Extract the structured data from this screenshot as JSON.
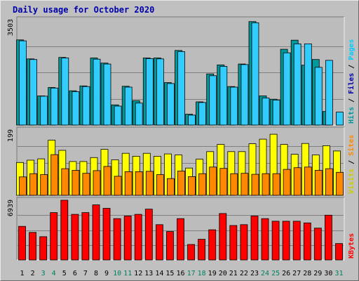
{
  "chart_data": {
    "title": "Daily usage for October 2020",
    "type": "bar",
    "days": [
      "1",
      "2",
      "3",
      "4",
      "5",
      "6",
      "7",
      "8",
      "9",
      "10",
      "11",
      "12",
      "13",
      "14",
      "15",
      "16",
      "17",
      "18",
      "19",
      "20",
      "21",
      "22",
      "23",
      "24",
      "25",
      "26",
      "27",
      "28",
      "29",
      "30",
      "31"
    ],
    "weekend_days": [
      "3",
      "4",
      "10",
      "11",
      "17",
      "18",
      "24",
      "25",
      "31"
    ],
    "colors": {
      "title": "#0000aa",
      "day_label": "#000000",
      "weekend_label": "#008060",
      "hits": "#009999",
      "files": "#33ccff",
      "pages": "#00ccff",
      "visits": "#ffff00",
      "sites": "#ff8800",
      "kbytes": "#ff0000",
      "background": "#c0c0c0",
      "plot_bg": "#bcbcbc",
      "grid": "#808080"
    },
    "panels": [
      {
        "id": "hits-files-pages",
        "ymax_label": "3503",
        "ylim": [
          0,
          3503
        ],
        "side_labels": [
          {
            "text": "Hits",
            "color": "#009999"
          },
          {
            "text": "Files",
            "color": "#0000aa"
          },
          {
            "text": "Pages",
            "color": "#00ccff"
          }
        ],
        "separator": " / ",
        "series": [
          {
            "name": "Hits",
            "color": "#009999",
            "values": [
              2830,
              2200,
              970,
              1250,
              2250,
              1140,
              1300,
              2230,
              2060,
              670,
              1290,
              810,
              2230,
              2230,
              1410,
              2480,
              360,
              770,
              1700,
              2000,
              1280,
              2030,
              3440,
              970,
              860,
              2520,
              2820,
              1990,
              2180,
              450,
              0
            ]
          },
          {
            "name": "Files",
            "color": "#33ccff",
            "values": [
              2800,
              2180,
              960,
              1230,
              2230,
              1110,
              1280,
              2190,
              2030,
              630,
              1260,
              730,
              2210,
              2200,
              1380,
              2440,
              330,
              750,
              1640,
              1950,
              1260,
              2010,
              3400,
              900,
              830,
              2400,
              2700,
              2700,
              1920,
              2150,
              430
            ]
          }
        ]
      },
      {
        "id": "visits-sites",
        "ymax_label": "199",
        "ylim": [
          0,
          199
        ],
        "side_labels": [
          {
            "text": "Visits",
            "color": "#cccc00"
          },
          {
            "text": "Sites",
            "color": "#ff8800"
          }
        ],
        "separator": " / ",
        "series": [
          {
            "name": "Visits",
            "color": "#ffff00",
            "values": [
              100,
              107,
              111,
              168,
              137,
              103,
              103,
              115,
              140,
              108,
              128,
              119,
              128,
              119,
              126,
              123,
              83,
              110,
              133,
              155,
              133,
              133,
              157,
              171,
              186,
              155,
              125,
              158,
              123,
              151,
              135
            ]
          },
          {
            "name": "Sites",
            "color": "#ff8800",
            "values": [
              56,
              66,
              63,
              124,
              81,
              76,
              67,
              75,
              88,
              58,
              72,
              72,
              73,
              63,
              51,
              74,
              57,
              66,
              86,
              82,
              66,
              67,
              64,
              66,
              66,
              79,
              84,
              86,
              76,
              81,
              70
            ]
          }
        ]
      },
      {
        "id": "kbytes",
        "ymax_label": "6939",
        "ylim": [
          0,
          6939
        ],
        "side_labels": [
          {
            "text": "KBytes",
            "color": "#ff0000"
          }
        ],
        "separator": " / ",
        "series": [
          {
            "name": "KBytes",
            "color": "#ff0000",
            "values": [
              3900,
              3200,
              2700,
              5500,
              6939,
              5300,
              5500,
              6400,
              6000,
              4800,
              5100,
              5300,
              5900,
              4100,
              3300,
              4800,
              1800,
              2400,
              3500,
              5400,
              4000,
              4100,
              5100,
              4800,
              4500,
              4500,
              4500,
              4300,
              3700,
              5200,
              1900
            ]
          }
        ]
      }
    ]
  }
}
